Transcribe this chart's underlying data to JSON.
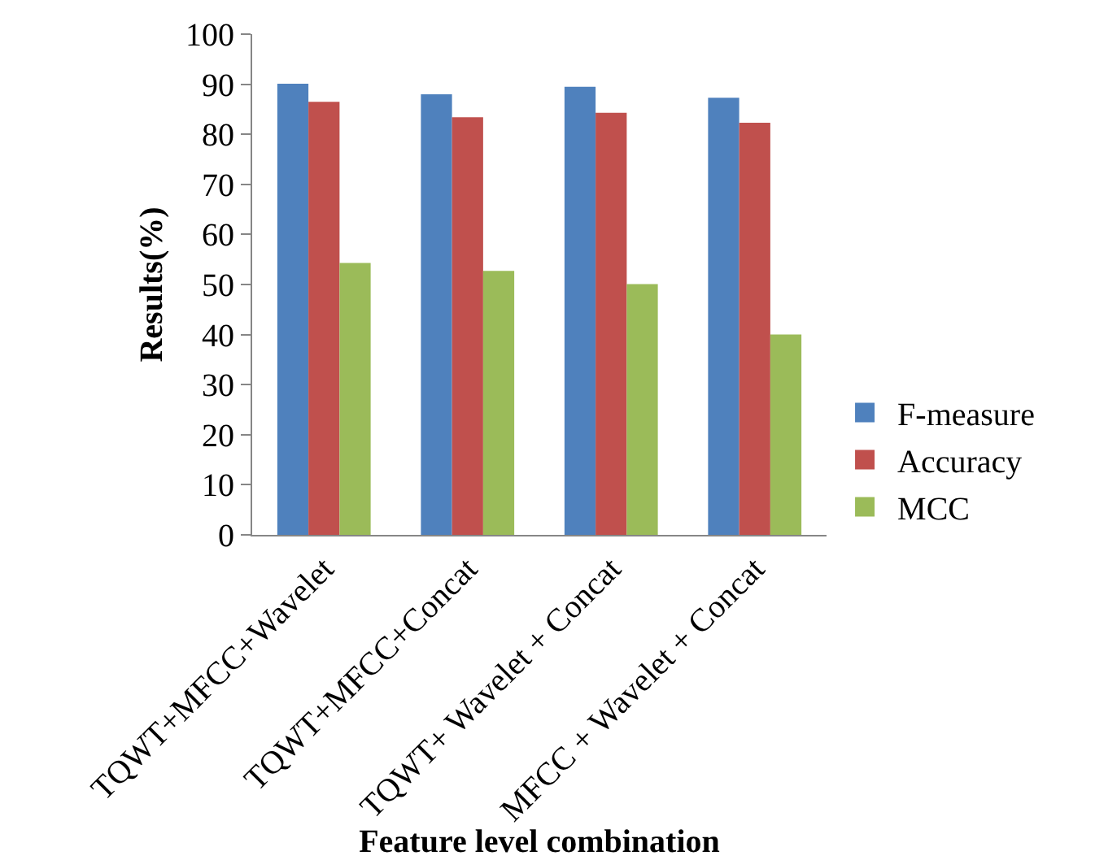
{
  "chart_data": {
    "type": "bar",
    "xlabel": "Feature level combination",
    "ylabel": "Results(%)",
    "categories": [
      "TQWT+MFCC+Wavelet",
      "TQWT+MFCC+Concat",
      "TQWT+ Wavelet + Concat",
      "MFCC + Wavelet + Concat"
    ],
    "series": [
      {
        "name": "F-measure",
        "color": "#4f81bd",
        "values": [
          90.1,
          88.0,
          89.5,
          87.3
        ]
      },
      {
        "name": "Accuracy",
        "color": "#c0504d",
        "values": [
          86.5,
          83.4,
          84.3,
          82.3
        ]
      },
      {
        "name": "MCC",
        "color": "#9bbb59",
        "values": [
          54.3,
          52.7,
          50.1,
          40.0
        ]
      }
    ],
    "ylim": [
      0,
      100
    ],
    "yticks": [
      0,
      10,
      20,
      30,
      40,
      50,
      60,
      70,
      80,
      90,
      100
    ],
    "legend": "right"
  }
}
